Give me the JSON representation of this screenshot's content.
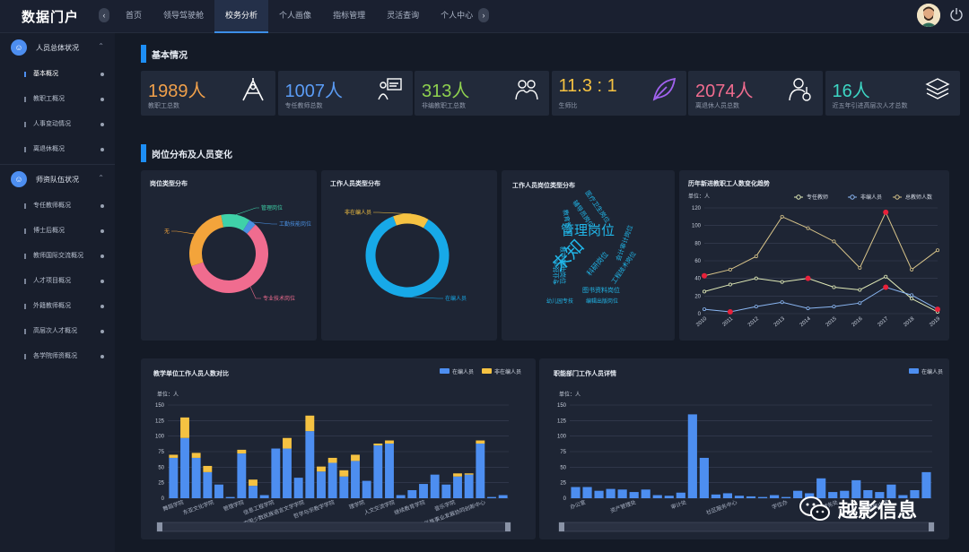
{
  "brand": "数据门户",
  "nav": {
    "tabs": [
      "首页",
      "领导驾驶舱",
      "校务分析",
      "个人画像",
      "指标管理",
      "灵活查询",
      "个人中心"
    ],
    "active_index": 2
  },
  "sidebar": {
    "groups": [
      {
        "label": "人员总体状况",
        "items": [
          "基本概况",
          "教职工概况",
          "人事变动情况",
          "离退休概况"
        ]
      },
      {
        "label": "师资队伍状况",
        "items": [
          "专任教师概况",
          "博士后概况",
          "教师国际交流概况",
          "人才项目概况",
          "外籍教师概况",
          "高层次人才概况",
          "各学院师资概况"
        ]
      }
    ],
    "active_item": "基本概况"
  },
  "sections": {
    "basic": "基本情况",
    "distribution": "岗位分布及人员变化"
  },
  "cards": [
    {
      "value": "1989人",
      "label": "教职工总数",
      "color": "#f0a04b",
      "icon": "teacher-board-icon"
    },
    {
      "value": "1007人",
      "label": "专任教师总数",
      "color": "#5b9cf5",
      "icon": "lecture-icon"
    },
    {
      "value": "313人",
      "label": "非编教职工总数",
      "color": "#8fd14f",
      "icon": "group-icon"
    },
    {
      "value": "11.3 : 1",
      "label": "生师比",
      "color": "#f5c242",
      "icon": "leaf-icon"
    },
    {
      "value": "2074人",
      "label": "离退休人员总数",
      "color": "#f06c8f",
      "icon": "retiree-icon"
    },
    {
      "value": "16人",
      "label": "近五年引进高层次人才总数",
      "color": "#3dd6c4",
      "icon": "layers-icon"
    }
  ],
  "charts": {
    "post_type": {
      "title": "岗位类型分布",
      "chart_data": {
        "type": "pie",
        "slices": [
          {
            "name": "管理岗位",
            "value": 12,
            "color": "#3fd1a8"
          },
          {
            "name": "工勤技能岗位",
            "value": 3,
            "color": "#4a90e2"
          },
          {
            "name": "专业技术岗位",
            "value": 58,
            "color": "#f06c8f"
          },
          {
            "name": "无",
            "value": 27,
            "color": "#f3a43b"
          }
        ]
      }
    },
    "staff_type": {
      "title": "工作人员类型分布",
      "chart_data": {
        "type": "pie",
        "slices": [
          {
            "name": "非在编人员",
            "value": 14,
            "color": "#f5c242"
          },
          {
            "name": "在编人员",
            "value": 86,
            "color": "#17a9e8"
          }
        ]
      }
    },
    "word_cloud": {
      "title": "工作人员岗位类型分布",
      "words": [
        {
          "text": "管理岗位",
          "size": 15,
          "x": 655,
          "y": 262,
          "rot": 0,
          "color": "#21b6e8"
        },
        {
          "text": "未知",
          "size": 20,
          "x": 638,
          "y": 290,
          "rot": -45,
          "color": "#21b6e8"
        },
        {
          "text": "教育管理",
          "size": 7,
          "x": 630,
          "y": 248,
          "rot": 80,
          "color": "#21b6e8"
        },
        {
          "text": "辅导员岗位",
          "size": 7,
          "x": 648,
          "y": 240,
          "rot": 55,
          "color": "#21b6e8"
        },
        {
          "text": "医疗卫生岗位",
          "size": 7,
          "x": 664,
          "y": 232,
          "rot": 55,
          "color": "#21b6e8"
        },
        {
          "text": "会计审计岗位",
          "size": 7,
          "x": 698,
          "y": 272,
          "rot": -70,
          "color": "#21b6e8"
        },
        {
          "text": "教学辅助岗位",
          "size": 7,
          "x": 625,
          "y": 296,
          "rot": 90,
          "color": "#21b6e8"
        },
        {
          "text": "专业技术",
          "size": 7,
          "x": 622,
          "y": 304,
          "rot": -90,
          "color": "#21b6e8"
        },
        {
          "text": "图书资料岗位",
          "size": 7,
          "x": 670,
          "y": 326,
          "rot": 0,
          "color": "#21b6e8"
        },
        {
          "text": "工程技术岗位",
          "size": 7,
          "x": 697,
          "y": 300,
          "rot": -55,
          "color": "#21b6e8"
        },
        {
          "text": "科研岗位",
          "size": 8,
          "x": 668,
          "y": 296,
          "rot": -50,
          "color": "#21b6e8"
        },
        {
          "text": "编辑出版岗位",
          "size": 6,
          "x": 671,
          "y": 338,
          "rot": 0,
          "color": "#21b6e8"
        },
        {
          "text": "幼儿园专技",
          "size": 6,
          "x": 624,
          "y": 338,
          "rot": 0,
          "color": "#21b6e8"
        }
      ]
    },
    "trend": {
      "title": "历年新进教职工人数变化趋势",
      "chart_data": {
        "type": "line",
        "ylabel": "单位：人",
        "categories": [
          "2010",
          "2011",
          "2012",
          "2013",
          "2014",
          "2015",
          "2016",
          "2017",
          "2018",
          "2019"
        ],
        "ylim": [
          0,
          120
        ],
        "yticks": [
          0,
          20,
          40,
          60,
          80,
          100,
          120
        ],
        "series": [
          {
            "name": "专任教师",
            "color": "#e2ecb8",
            "values": [
              25,
              33,
              40,
              36,
              40,
              30,
              27,
              42,
              17,
              2
            ]
          },
          {
            "name": "非编人员",
            "color": "#8ab6f2",
            "values": [
              5,
              2,
              8,
              13,
              6,
              8,
              12,
              30,
              21,
              5
            ]
          },
          {
            "name": "总教师人数",
            "color": "#d8c48a",
            "values": [
              43,
              50,
              65,
              110,
              97,
              82,
              52,
              115,
              50,
              72
            ]
          }
        ]
      }
    },
    "dept_compare": {
      "title": "教学单位工作人员人数对比",
      "ylabel": "单位：人",
      "chart_data": {
        "type": "bar",
        "stacked": true,
        "ylim": [
          0,
          150
        ],
        "yticks": [
          0,
          25,
          50,
          75,
          100,
          125,
          150
        ],
        "category_labels": [
          "舞蹈学院",
          "东亚文化学院",
          "管理学院",
          "信息工程学院",
          "中国少数民族语言文学学院",
          "哲学与宗教学学院",
          "理学院",
          "人文交流学院",
          "继续教育学院",
          "音乐学院",
          "少数民族事业发展协同创新中心"
        ],
        "series": [
          {
            "name": "在编人员",
            "color": "#4d8ef0",
            "values": [
              65,
              97,
              65,
              42,
              22,
              2,
              72,
              20,
              5,
              80,
              80,
              33,
              108,
              43,
              57,
              35,
              60,
              28,
              85,
              88,
              5,
              13,
              23,
              38,
              22,
              35,
              38,
              88,
              2,
              5
            ]
          },
          {
            "name": "非在编人员",
            "color": "#f5c242",
            "values": [
              5,
              33,
              8,
              10,
              0,
              0,
              6,
              10,
              0,
              0,
              17,
              0,
              25,
              8,
              8,
              10,
              10,
              0,
              3,
              5,
              0,
              0,
              0,
              0,
              0,
              5,
              2,
              5,
              0,
              0
            ]
          }
        ]
      }
    },
    "admin_detail": {
      "title": "职能部门工作人员详情",
      "ylabel": "单位：人",
      "chart_data": {
        "type": "bar",
        "ylim": [
          0,
          150
        ],
        "yticks": [
          0,
          25,
          50,
          75,
          100,
          125,
          150
        ],
        "category_labels": [
          "办公室",
          "资产管理处",
          "审计处",
          "社区服务中心",
          "学位办",
          "财务处",
          "附属中学"
        ],
        "series": [
          {
            "name": "在编人员",
            "color": "#4d8ef0",
            "values": [
              18,
              18,
              12,
              15,
              14,
              10,
              14,
              5,
              4,
              9,
              135,
              65,
              6,
              8,
              4,
              3,
              2,
              5,
              2,
              12,
              8,
              32,
              10,
              12,
              29,
              13,
              10,
              22,
              5,
              13,
              42
            ]
          }
        ]
      }
    }
  },
  "watermark": "越影信息"
}
